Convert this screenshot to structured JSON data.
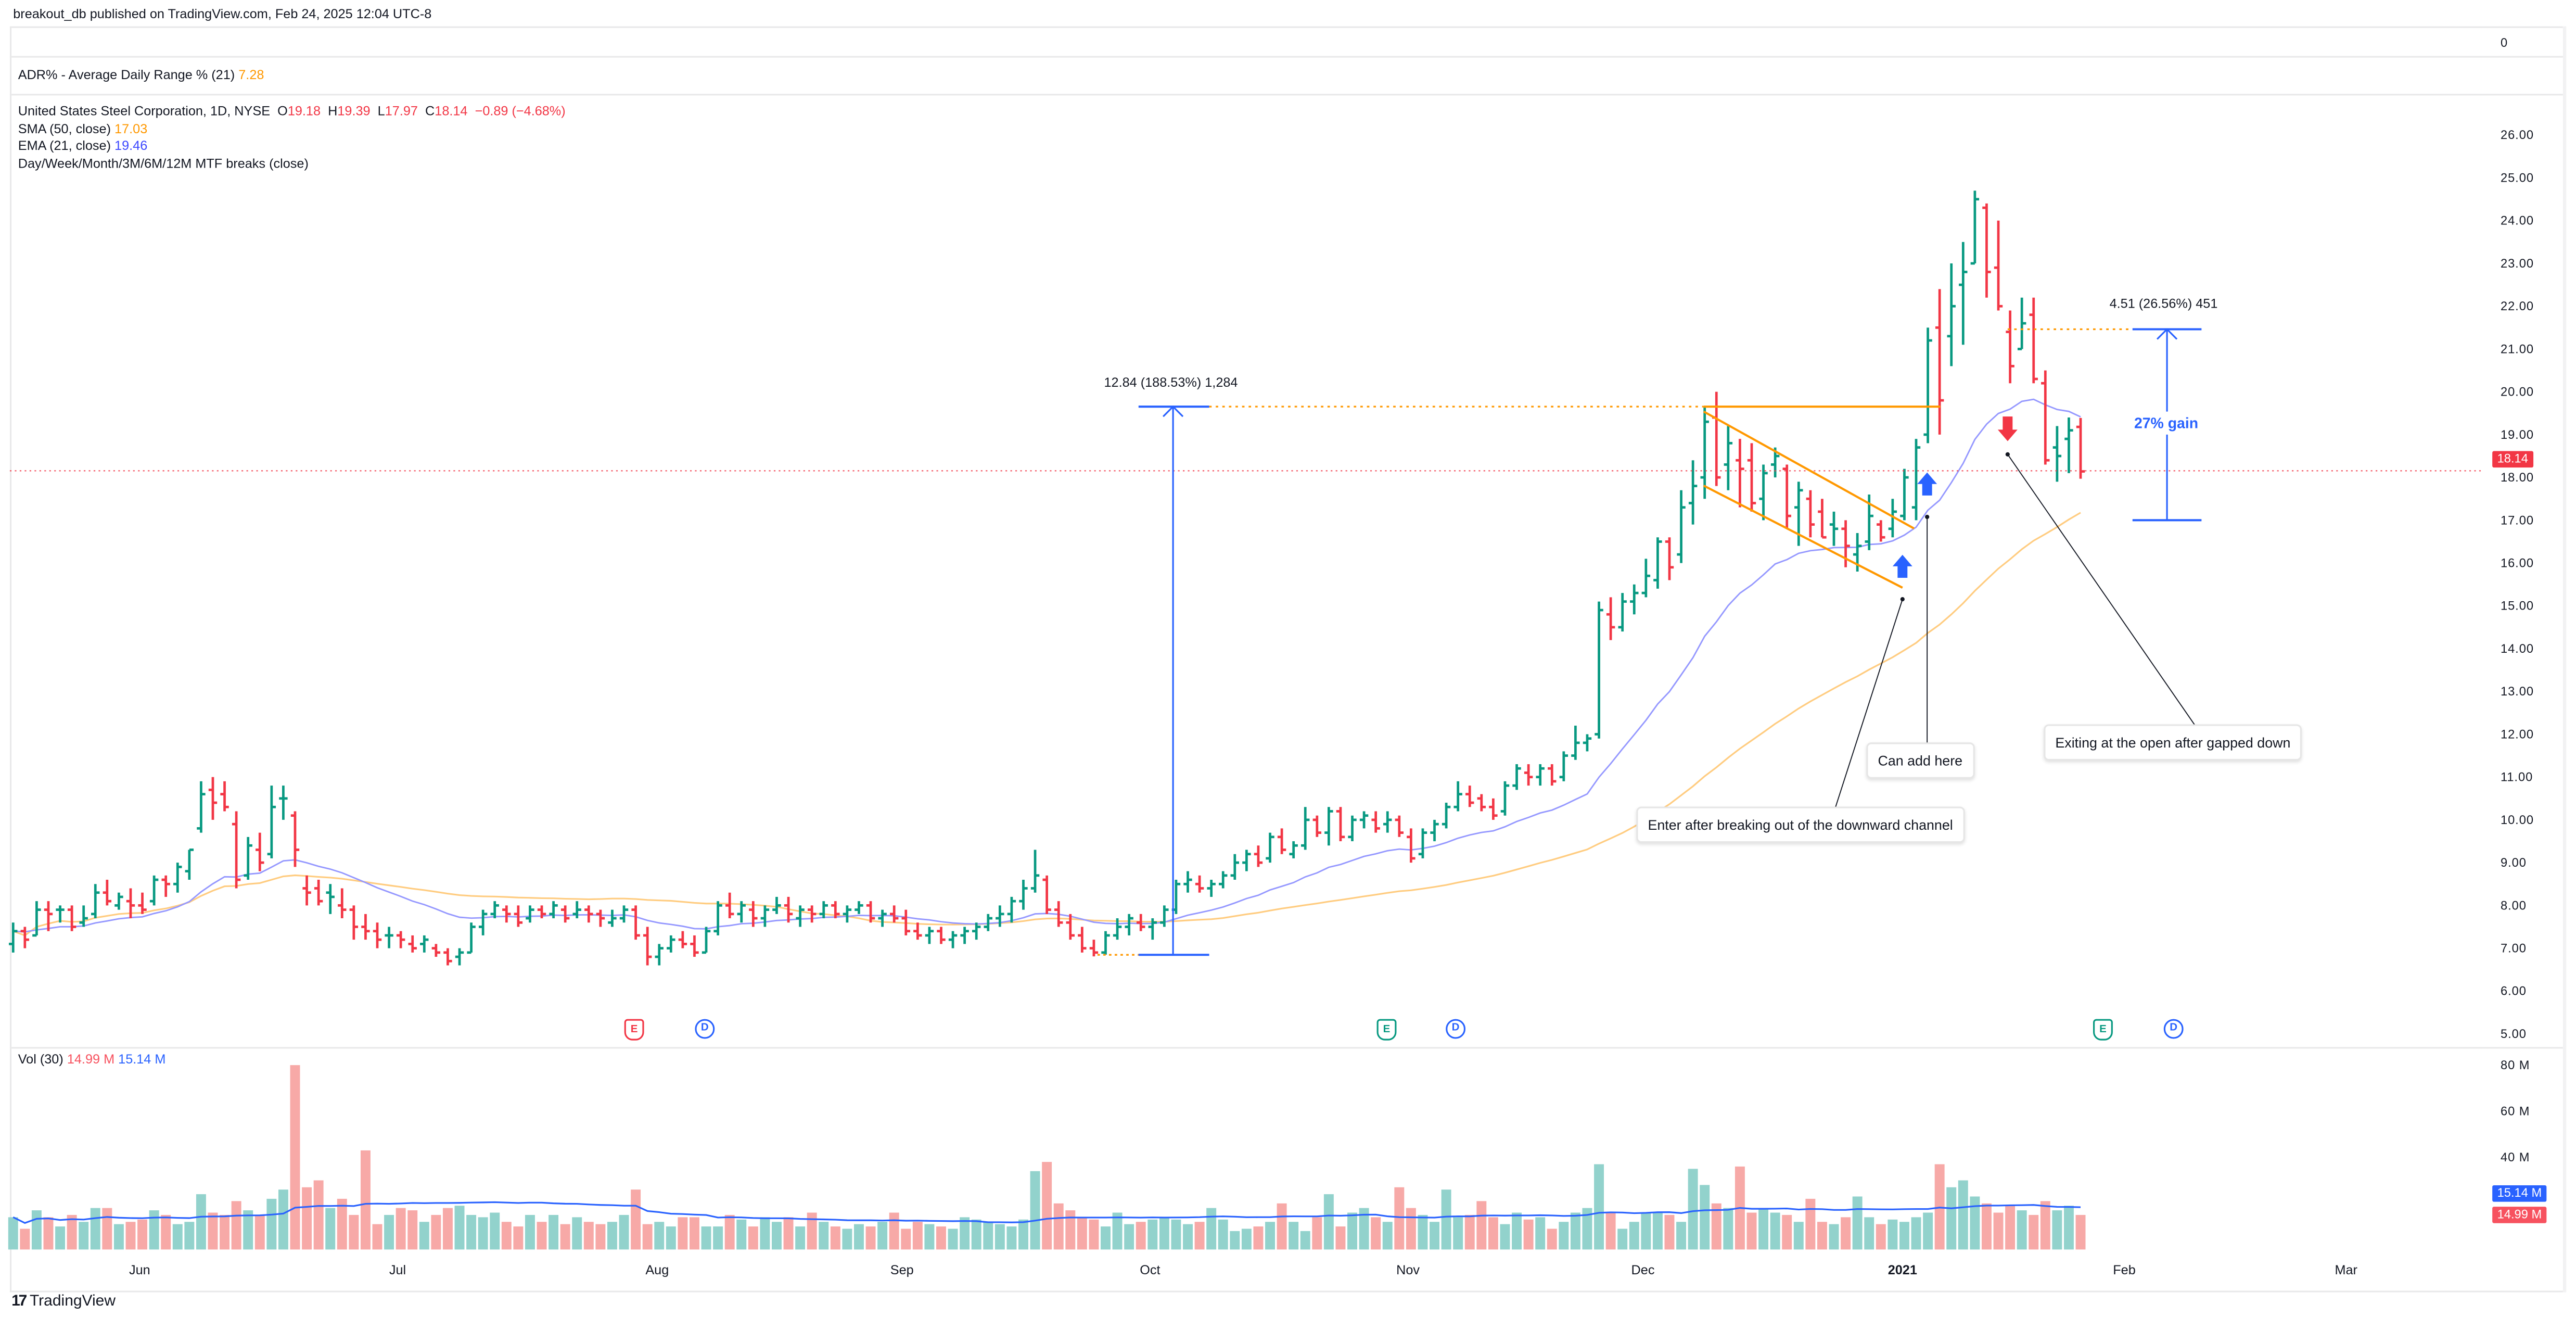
{
  "header": {
    "published": "breakout_db published on TradingView.com, Feb 24, 2025 12:04 UTC-8"
  },
  "adr": {
    "label": "ADR% - Average Daily Range % (21)",
    "value": "7.28",
    "axis": "0"
  },
  "legend": {
    "symbol": "United States Steel Corporation, 1D, NYSE",
    "o_label": "O",
    "o": "19.18",
    "h_label": "H",
    "h": "19.39",
    "l_label": "L",
    "l": "17.97",
    "c_label": "C",
    "c": "18.14",
    "change": "−0.89 (−4.68%)"
  },
  "sma": {
    "label": "SMA (50, close)",
    "value": "17.03"
  },
  "ema": {
    "label": "EMA (21, close)",
    "value": "19.46"
  },
  "mtf": {
    "label": "Day/Week/Month/3M/6M/12M MTF breaks (close)"
  },
  "price_axis": [
    "26.00",
    "25.00",
    "24.00",
    "23.00",
    "22.00",
    "21.00",
    "20.00",
    "19.00",
    "18.00",
    "17.00",
    "16.00",
    "15.00",
    "14.00",
    "13.00",
    "12.00",
    "11.00",
    "10.00",
    "9.00",
    "8.00",
    "7.00",
    "6.00",
    "5.00"
  ],
  "price_badge": "18.14",
  "volume": {
    "label": "Vol (30)",
    "value": "14.99 M",
    "ma_value": "15.14 M",
    "axis": [
      "80 M",
      "60 M",
      "40 M"
    ],
    "badge_ma": "15.14 M",
    "badge_vol": "14.99 M"
  },
  "time_axis": [
    "Jun",
    "Jul",
    "Aug",
    "Sep",
    "Oct",
    "Nov",
    "Dec",
    "2021",
    "Feb",
    "Mar"
  ],
  "events": [
    {
      "letter": "E",
      "kind": "earnings-miss"
    },
    {
      "letter": "D",
      "kind": "dividend"
    },
    {
      "letter": "E",
      "kind": "earnings-beat"
    },
    {
      "letter": "D",
      "kind": "dividend"
    },
    {
      "letter": "E",
      "kind": "earnings-beat"
    },
    {
      "letter": "D",
      "kind": "dividend"
    }
  ],
  "annotations": {
    "measure_1": "12.84 (188.53%) 1,284",
    "measure_2": "4.51 (26.56%) 451",
    "gain_label": "27% gain",
    "callout_enter": "Enter after breaking out of the downward channel",
    "callout_add": "Can add here",
    "callout_exit": "Exiting at the open after gapped down"
  },
  "brand": "TradingView",
  "colors": {
    "up": "#089981",
    "down": "#f23645",
    "vol_up": "#92d2cc",
    "vol_down": "#f7a9a7",
    "ema": "#9598ff",
    "sma": "#ffcc80",
    "vol_ma": "#2962ff",
    "measure": "#2962ff",
    "channel": "#ff9800"
  },
  "chart_data": {
    "type": "ohlc",
    "symbol": "United States Steel Corporation, 1D, NYSE",
    "ylim": [
      5,
      26
    ],
    "volume_ylim_m": [
      0,
      80
    ],
    "x_range": [
      "2020-05",
      "2021-01"
    ],
    "bars_ohlc": [
      [
        7.1,
        7.6,
        6.9,
        7.4
      ],
      [
        7.4,
        7.5,
        7.0,
        7.2
      ],
      [
        7.3,
        8.1,
        7.3,
        7.9
      ],
      [
        7.9,
        8.1,
        7.4,
        7.8
      ],
      [
        7.9,
        8.0,
        7.6,
        7.9
      ],
      [
        7.9,
        8.0,
        7.4,
        7.5
      ],
      [
        7.6,
        8.0,
        7.5,
        7.7
      ],
      [
        7.8,
        8.5,
        7.7,
        8.3
      ],
      [
        8.3,
        8.6,
        8.0,
        8.1
      ],
      [
        8.0,
        8.3,
        7.9,
        8.2
      ],
      [
        8.1,
        8.4,
        7.7,
        8.0
      ],
      [
        8.0,
        8.3,
        7.8,
        7.9
      ],
      [
        8.1,
        8.7,
        8.0,
        8.6
      ],
      [
        8.6,
        8.7,
        8.2,
        8.5
      ],
      [
        8.5,
        9.0,
        8.3,
        8.9
      ],
      [
        8.8,
        9.3,
        8.6,
        9.3
      ],
      [
        9.8,
        10.9,
        9.7,
        10.6
      ],
      [
        10.7,
        11.0,
        10.0,
        10.4
      ],
      [
        10.6,
        10.9,
        10.2,
        10.3
      ],
      [
        9.9,
        10.2,
        8.4,
        8.6
      ],
      [
        8.7,
        9.6,
        8.6,
        9.4
      ],
      [
        9.3,
        9.7,
        8.8,
        9.0
      ],
      [
        9.2,
        10.8,
        9.1,
        10.3
      ],
      [
        10.5,
        10.8,
        10.0,
        10.5
      ],
      [
        10.1,
        10.2,
        8.9,
        9.3
      ],
      [
        8.4,
        8.7,
        8.0,
        8.3
      ],
      [
        8.4,
        8.6,
        8.0,
        8.1
      ],
      [
        8.3,
        8.5,
        7.8,
        8.2
      ],
      [
        8.0,
        8.4,
        7.7,
        7.9
      ],
      [
        7.9,
        8.0,
        7.2,
        7.5
      ],
      [
        7.5,
        7.8,
        7.2,
        7.4
      ],
      [
        7.4,
        7.6,
        7.0,
        7.2
      ],
      [
        7.3,
        7.5,
        7.0,
        7.3
      ],
      [
        7.3,
        7.4,
        7.0,
        7.2
      ],
      [
        7.1,
        7.3,
        6.9,
        7.0
      ],
      [
        7.1,
        7.3,
        6.9,
        7.2
      ],
      [
        7.0,
        7.1,
        6.8,
        6.9
      ],
      [
        6.9,
        7.0,
        6.6,
        6.7
      ],
      [
        6.8,
        7.0,
        6.6,
        6.9
      ],
      [
        6.9,
        7.6,
        6.9,
        7.5
      ],
      [
        7.5,
        7.9,
        7.3,
        7.8
      ],
      [
        7.8,
        8.1,
        7.7,
        8.0
      ],
      [
        7.9,
        8.0,
        7.6,
        7.8
      ],
      [
        7.8,
        8.0,
        7.5,
        7.6
      ],
      [
        7.7,
        8.0,
        7.6,
        7.9
      ],
      [
        7.9,
        8.0,
        7.7,
        7.8
      ],
      [
        7.8,
        8.1,
        7.7,
        8.0
      ],
      [
        7.9,
        8.0,
        7.6,
        7.7
      ],
      [
        7.8,
        8.1,
        7.7,
        7.9
      ],
      [
        7.9,
        8.0,
        7.6,
        7.8
      ],
      [
        7.8,
        7.9,
        7.5,
        7.7
      ],
      [
        7.6,
        7.9,
        7.5,
        7.7
      ],
      [
        7.7,
        8.0,
        7.6,
        7.9
      ],
      [
        7.9,
        8.0,
        7.2,
        7.3
      ],
      [
        7.3,
        7.5,
        6.6,
        6.8
      ],
      [
        6.8,
        7.1,
        6.6,
        7.0
      ],
      [
        7.0,
        7.3,
        6.9,
        7.2
      ],
      [
        7.2,
        7.4,
        7.0,
        7.1
      ],
      [
        7.1,
        7.3,
        6.8,
        6.9
      ],
      [
        6.9,
        7.5,
        6.9,
        7.4
      ],
      [
        7.4,
        8.1,
        7.3,
        8.0
      ],
      [
        8.0,
        8.3,
        7.7,
        7.8
      ],
      [
        7.8,
        8.1,
        7.6,
        8.0
      ],
      [
        7.9,
        8.1,
        7.5,
        7.7
      ],
      [
        7.7,
        8.0,
        7.5,
        7.9
      ],
      [
        7.9,
        8.2,
        7.8,
        8.0
      ],
      [
        8.0,
        8.2,
        7.6,
        7.8
      ],
      [
        7.7,
        8.0,
        7.5,
        7.9
      ],
      [
        7.9,
        8.0,
        7.6,
        7.8
      ],
      [
        7.8,
        8.1,
        7.7,
        8.0
      ],
      [
        8.0,
        8.1,
        7.7,
        7.8
      ],
      [
        7.8,
        8.0,
        7.6,
        7.9
      ],
      [
        7.9,
        8.1,
        7.8,
        8.0
      ],
      [
        8.0,
        8.1,
        7.6,
        7.7
      ],
      [
        7.7,
        7.9,
        7.5,
        7.8
      ],
      [
        7.8,
        8.0,
        7.6,
        7.7
      ],
      [
        7.7,
        7.9,
        7.3,
        7.4
      ],
      [
        7.4,
        7.6,
        7.2,
        7.3
      ],
      [
        7.3,
        7.5,
        7.1,
        7.4
      ],
      [
        7.4,
        7.5,
        7.1,
        7.2
      ],
      [
        7.2,
        7.4,
        7.0,
        7.3
      ],
      [
        7.3,
        7.5,
        7.1,
        7.4
      ],
      [
        7.4,
        7.6,
        7.2,
        7.5
      ],
      [
        7.5,
        7.8,
        7.4,
        7.7
      ],
      [
        7.7,
        8.0,
        7.5,
        7.8
      ],
      [
        7.8,
        8.2,
        7.6,
        8.1
      ],
      [
        8.1,
        8.6,
        7.9,
        8.4
      ],
      [
        8.4,
        9.3,
        8.3,
        8.7
      ],
      [
        8.6,
        8.7,
        7.8,
        7.9
      ],
      [
        7.9,
        8.1,
        7.5,
        7.6
      ],
      [
        7.6,
        7.8,
        7.2,
        7.3
      ],
      [
        7.3,
        7.5,
        6.9,
        7.0
      ],
      [
        7.0,
        7.2,
        6.81,
        6.9
      ],
      [
        6.9,
        7.4,
        6.85,
        7.3
      ],
      [
        7.3,
        7.7,
        7.2,
        7.5
      ],
      [
        7.5,
        7.8,
        7.3,
        7.7
      ],
      [
        7.6,
        7.8,
        7.4,
        7.5
      ],
      [
        7.5,
        7.7,
        7.2,
        7.6
      ],
      [
        7.6,
        8.0,
        7.5,
        7.9
      ],
      [
        7.9,
        8.6,
        7.8,
        8.5
      ],
      [
        8.5,
        8.8,
        8.3,
        8.6
      ],
      [
        8.5,
        8.7,
        8.3,
        8.4
      ],
      [
        8.4,
        8.6,
        8.2,
        8.5
      ],
      [
        8.5,
        8.8,
        8.4,
        8.7
      ],
      [
        8.7,
        9.2,
        8.6,
        9.0
      ],
      [
        9.0,
        9.3,
        8.8,
        9.2
      ],
      [
        9.2,
        9.4,
        8.9,
        9.0
      ],
      [
        9.1,
        9.7,
        9.0,
        9.6
      ],
      [
        9.6,
        9.8,
        9.2,
        9.3
      ],
      [
        9.2,
        9.5,
        9.1,
        9.4
      ],
      [
        9.4,
        10.3,
        9.3,
        10.0
      ],
      [
        10.0,
        10.1,
        9.6,
        9.7
      ],
      [
        9.7,
        10.3,
        9.4,
        10.2
      ],
      [
        10.2,
        10.3,
        9.5,
        9.6
      ],
      [
        9.6,
        10.1,
        9.5,
        10.0
      ],
      [
        10.0,
        10.2,
        9.8,
        10.1
      ],
      [
        10.0,
        10.2,
        9.7,
        9.8
      ],
      [
        9.9,
        10.2,
        9.7,
        10.0
      ],
      [
        10.0,
        10.1,
        9.6,
        9.7
      ],
      [
        9.6,
        9.8,
        9.0,
        9.1
      ],
      [
        9.2,
        9.8,
        9.1,
        9.7
      ],
      [
        9.7,
        10.0,
        9.5,
        9.9
      ],
      [
        9.9,
        10.4,
        9.8,
        10.3
      ],
      [
        10.3,
        10.9,
        10.2,
        10.6
      ],
      [
        10.6,
        10.8,
        10.3,
        10.4
      ],
      [
        10.5,
        10.6,
        10.2,
        10.3
      ],
      [
        10.3,
        10.5,
        10.0,
        10.1
      ],
      [
        10.2,
        10.9,
        10.1,
        10.8
      ],
      [
        10.8,
        11.3,
        10.7,
        11.2
      ],
      [
        11.1,
        11.3,
        10.8,
        11.0
      ],
      [
        11.0,
        11.3,
        10.8,
        11.2
      ],
      [
        11.2,
        11.3,
        10.8,
        10.9
      ],
      [
        11.0,
        11.6,
        10.9,
        11.5
      ],
      [
        11.5,
        12.2,
        11.4,
        11.8
      ],
      [
        11.8,
        12.0,
        11.6,
        11.9
      ],
      [
        12.0,
        15.1,
        11.9,
        14.9
      ],
      [
        14.8,
        15.2,
        14.2,
        14.5
      ],
      [
        14.5,
        15.3,
        14.4,
        15.1
      ],
      [
        15.1,
        15.5,
        14.8,
        15.3
      ],
      [
        15.3,
        16.1,
        15.2,
        15.7
      ],
      [
        15.6,
        16.6,
        15.4,
        16.5
      ],
      [
        16.5,
        16.6,
        15.6,
        15.9
      ],
      [
        16.2,
        17.7,
        16.0,
        17.3
      ],
      [
        17.4,
        18.4,
        16.9,
        17.8
      ],
      [
        18.0,
        19.65,
        17.5,
        19.3
      ],
      [
        19.4,
        20.0,
        17.8,
        18.0
      ],
      [
        18.3,
        19.2,
        17.7,
        18.8
      ],
      [
        18.4,
        18.9,
        17.3,
        18.2
      ],
      [
        18.4,
        18.8,
        17.2,
        17.4
      ],
      [
        17.5,
        18.3,
        17.0,
        18.1
      ],
      [
        18.3,
        18.7,
        18.0,
        18.5
      ],
      [
        18.2,
        18.3,
        16.8,
        17.1
      ],
      [
        17.3,
        17.9,
        16.4,
        17.7
      ],
      [
        17.5,
        17.7,
        16.6,
        16.9
      ],
      [
        17.2,
        17.5,
        16.6,
        16.6
      ],
      [
        16.9,
        17.2,
        16.4,
        16.8
      ],
      [
        16.8,
        17.0,
        15.9,
        16.4
      ],
      [
        16.2,
        16.7,
        15.8,
        16.4
      ],
      [
        16.5,
        17.6,
        16.3,
        17.1
      ],
      [
        16.9,
        17.0,
        16.5,
        16.6
      ],
      [
        16.8,
        17.5,
        16.6,
        17.2
      ],
      [
        17.1,
        18.2,
        17.0,
        18.0
      ],
      [
        17.3,
        18.9,
        17.0,
        18.7
      ],
      [
        19.0,
        21.5,
        18.8,
        21.2
      ],
      [
        21.5,
        22.4,
        19.0,
        19.8
      ],
      [
        21.3,
        23.0,
        20.6,
        22.0
      ],
      [
        22.5,
        23.5,
        21.1,
        22.8
      ],
      [
        23.0,
        24.7,
        23.0,
        24.5
      ],
      [
        24.3,
        24.4,
        22.2,
        22.8
      ],
      [
        22.9,
        24.0,
        21.9,
        22.0
      ],
      [
        21.4,
        21.9,
        20.2,
        20.6
      ],
      [
        21.0,
        22.2,
        21.0,
        21.6
      ],
      [
        21.8,
        22.2,
        20.2,
        20.3
      ],
      [
        20.2,
        20.5,
        18.3,
        18.4
      ],
      [
        18.7,
        19.2,
        17.9,
        18.5
      ],
      [
        18.9,
        19.4,
        18.1,
        19.1
      ],
      [
        19.18,
        19.39,
        17.97,
        18.14
      ]
    ],
    "volume_m": [
      14,
      9,
      17,
      14,
      10,
      15,
      12,
      18,
      18,
      11,
      12,
      13,
      17,
      15,
      11,
      12,
      24,
      16,
      15,
      21,
      17,
      15,
      22,
      26,
      80,
      27,
      30,
      18,
      22,
      15,
      43,
      11,
      15,
      18,
      17,
      12,
      15,
      18,
      19,
      15,
      14,
      16,
      12,
      10,
      15,
      12,
      15,
      11,
      14,
      12,
      11,
      12,
      15,
      26,
      11,
      12,
      10,
      14,
      14,
      10,
      10,
      15,
      13,
      10,
      14,
      12,
      14,
      10,
      16,
      12,
      10,
      9,
      11,
      10,
      12,
      16,
      9,
      12,
      11,
      10,
      9,
      14,
      13,
      12,
      11,
      10,
      13,
      34,
      38,
      20,
      17,
      14,
      13,
      10,
      16,
      11,
      12,
      13,
      14,
      13,
      11,
      12,
      18,
      13,
      8,
      9,
      10,
      12,
      20,
      12,
      8,
      14,
      24,
      10,
      16,
      18,
      14,
      12,
      27,
      18,
      15,
      12,
      26,
      14,
      15,
      21,
      14,
      11,
      16,
      13,
      14,
      9,
      12,
      16,
      18,
      37,
      16,
      9,
      12,
      16,
      16,
      15,
      12,
      35,
      28,
      20,
      18,
      36,
      16,
      18,
      16,
      15,
      12,
      22,
      12,
      11,
      14,
      23,
      14,
      11,
      13,
      12,
      14,
      16,
      37,
      27,
      30,
      23,
      20,
      16,
      19,
      17,
      15,
      21,
      17,
      19,
      15
    ]
  }
}
